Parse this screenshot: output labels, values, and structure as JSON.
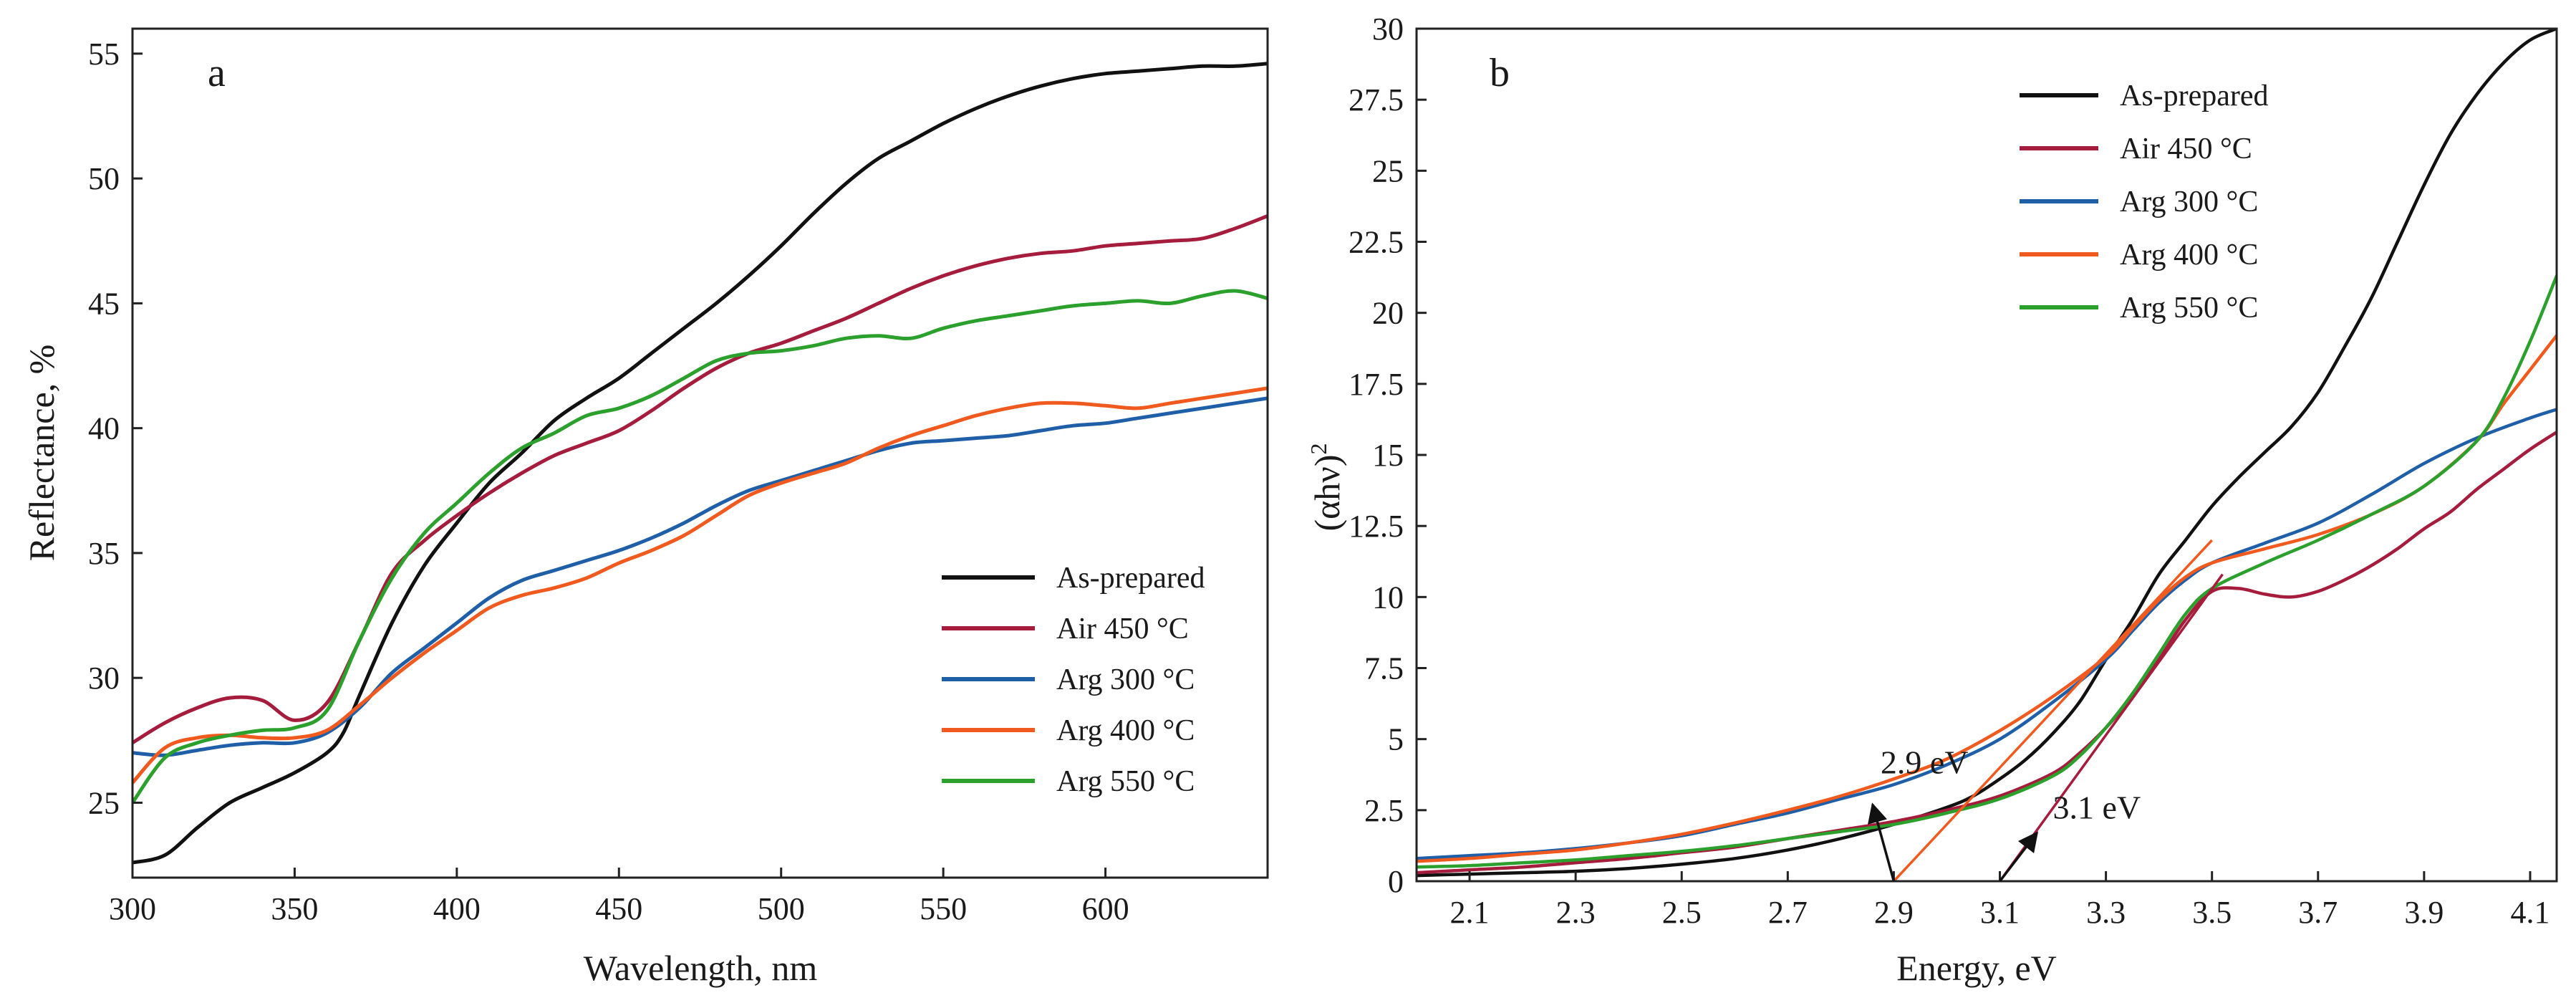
{
  "chart_data": [
    {
      "panel_label": "a",
      "type": "line",
      "title": "",
      "xlabel": "Wavelength, nm",
      "ylabel": "Reflectance, %",
      "xlim": [
        300,
        650
      ],
      "ylim": [
        22,
        56
      ],
      "x_ticks": [
        300,
        350,
        400,
        450,
        500,
        550,
        600
      ],
      "y_ticks": [
        25,
        30,
        35,
        40,
        45,
        50,
        55
      ],
      "grid": false,
      "legend_position": "bottom-right",
      "series": [
        {
          "name": "As-prepared",
          "color": "#111111",
          "x": [
            300,
            310,
            320,
            330,
            340,
            350,
            360,
            365,
            370,
            380,
            390,
            400,
            410,
            420,
            430,
            440,
            450,
            460,
            470,
            480,
            490,
            500,
            510,
            520,
            530,
            540,
            550,
            560,
            570,
            580,
            590,
            600,
            610,
            620,
            630,
            640,
            650
          ],
          "y": [
            22.6,
            22.9,
            24.0,
            25.0,
            25.6,
            26.2,
            27.0,
            27.8,
            29.3,
            32.2,
            34.5,
            36.2,
            37.8,
            39.0,
            40.3,
            41.2,
            42.0,
            43.0,
            44.0,
            45.0,
            46.1,
            47.3,
            48.6,
            49.8,
            50.8,
            51.5,
            52.2,
            52.8,
            53.3,
            53.7,
            54.0,
            54.2,
            54.3,
            54.4,
            54.5,
            54.5,
            54.6
          ]
        },
        {
          "name": "Air 450 °C",
          "color": "#a51c3c",
          "x": [
            300,
            310,
            320,
            330,
            340,
            350,
            360,
            370,
            380,
            390,
            400,
            410,
            420,
            430,
            440,
            450,
            460,
            470,
            480,
            490,
            500,
            510,
            520,
            530,
            540,
            550,
            560,
            570,
            580,
            590,
            600,
            610,
            620,
            630,
            640,
            650
          ],
          "y": [
            27.4,
            28.2,
            28.8,
            29.2,
            29.1,
            28.3,
            29.0,
            31.5,
            34.2,
            35.5,
            36.5,
            37.4,
            38.2,
            38.9,
            39.4,
            39.9,
            40.7,
            41.6,
            42.4,
            43.0,
            43.4,
            43.9,
            44.4,
            45.0,
            45.6,
            46.1,
            46.5,
            46.8,
            47.0,
            47.1,
            47.3,
            47.4,
            47.5,
            47.6,
            48.0,
            48.5
          ]
        },
        {
          "name": "Arg 300 °C",
          "color": "#1f5fa8",
          "x": [
            300,
            310,
            320,
            330,
            340,
            350,
            360,
            370,
            380,
            390,
            400,
            410,
            420,
            430,
            440,
            450,
            460,
            470,
            480,
            490,
            500,
            510,
            520,
            530,
            540,
            550,
            560,
            570,
            580,
            590,
            600,
            610,
            620,
            630,
            640,
            650
          ],
          "y": [
            27.0,
            26.9,
            27.1,
            27.3,
            27.4,
            27.4,
            27.8,
            28.8,
            30.2,
            31.2,
            32.2,
            33.2,
            33.9,
            34.3,
            34.7,
            35.1,
            35.6,
            36.2,
            36.9,
            37.5,
            37.9,
            38.3,
            38.7,
            39.1,
            39.4,
            39.5,
            39.6,
            39.7,
            39.9,
            40.1,
            40.2,
            40.4,
            40.6,
            40.8,
            41.0,
            41.2
          ]
        },
        {
          "name": "Arg 400 °C",
          "color": "#f05a1e",
          "x": [
            300,
            310,
            320,
            330,
            340,
            350,
            360,
            370,
            380,
            390,
            400,
            410,
            420,
            430,
            440,
            450,
            460,
            470,
            480,
            490,
            500,
            510,
            520,
            530,
            540,
            550,
            560,
            570,
            580,
            590,
            600,
            610,
            620,
            630,
            640,
            650
          ],
          "y": [
            25.8,
            27.2,
            27.6,
            27.7,
            27.6,
            27.6,
            27.9,
            28.9,
            30.0,
            31.0,
            31.9,
            32.8,
            33.3,
            33.6,
            34.0,
            34.6,
            35.1,
            35.7,
            36.5,
            37.3,
            37.8,
            38.2,
            38.6,
            39.2,
            39.7,
            40.1,
            40.5,
            40.8,
            41.0,
            41.0,
            40.9,
            40.8,
            41.0,
            41.2,
            41.4,
            41.6
          ]
        },
        {
          "name": "Arg 550 °C",
          "color": "#2ca02c",
          "x": [
            300,
            310,
            320,
            330,
            340,
            350,
            360,
            370,
            380,
            390,
            400,
            410,
            420,
            430,
            440,
            450,
            460,
            470,
            480,
            490,
            500,
            510,
            520,
            530,
            540,
            550,
            560,
            570,
            580,
            590,
            600,
            610,
            620,
            630,
            640,
            650
          ],
          "y": [
            25.0,
            26.8,
            27.4,
            27.7,
            27.9,
            28.0,
            28.7,
            31.5,
            34.0,
            35.8,
            37.0,
            38.2,
            39.2,
            39.8,
            40.5,
            40.8,
            41.3,
            42.0,
            42.7,
            43.0,
            43.1,
            43.3,
            43.6,
            43.7,
            43.6,
            44.0,
            44.3,
            44.5,
            44.7,
            44.9,
            45.0,
            45.1,
            45.0,
            45.3,
            45.5,
            45.2
          ]
        }
      ]
    },
    {
      "panel_label": "b",
      "type": "line",
      "title": "",
      "xlabel": "Energy, eV",
      "ylabel": "(αhν)²",
      "ylabel_base": "(αhν)",
      "ylabel_sup": "2",
      "xlim": [
        2.0,
        4.15
      ],
      "ylim": [
        0,
        30
      ],
      "x_ticks": [
        "2.1",
        "2.3",
        "2.5",
        "2.7",
        "2.9",
        "3.1",
        "3.3",
        "3.5",
        "3.7",
        "3.9",
        "4.1"
      ],
      "y_ticks": [
        "0",
        "2.5",
        "5",
        "7.5",
        "10",
        "12.5",
        "15",
        "17.5",
        "20",
        "22.5",
        "25",
        "27.5",
        "30"
      ],
      "grid": false,
      "legend_position": "top-left",
      "series": [
        {
          "name": "As-prepared",
          "color": "#111111",
          "x": [
            2.0,
            2.1,
            2.2,
            2.3,
            2.4,
            2.5,
            2.6,
            2.7,
            2.8,
            2.9,
            3.0,
            3.05,
            3.1,
            3.15,
            3.2,
            3.25,
            3.3,
            3.35,
            3.4,
            3.45,
            3.5,
            3.55,
            3.6,
            3.65,
            3.7,
            3.75,
            3.8,
            3.85,
            3.9,
            3.95,
            4.0,
            4.05,
            4.1,
            4.15
          ],
          "y": [
            0.2,
            0.25,
            0.3,
            0.35,
            0.45,
            0.6,
            0.8,
            1.1,
            1.5,
            2.0,
            2.6,
            3.0,
            3.6,
            4.3,
            5.2,
            6.3,
            7.8,
            9.2,
            10.8,
            12.0,
            13.2,
            14.2,
            15.1,
            16.0,
            17.2,
            18.8,
            20.5,
            22.5,
            24.5,
            26.3,
            27.7,
            28.8,
            29.6,
            30.0
          ]
        },
        {
          "name": "Air 450 °C",
          "color": "#a51c3c",
          "x": [
            2.0,
            2.1,
            2.2,
            2.3,
            2.4,
            2.5,
            2.6,
            2.7,
            2.8,
            2.9,
            3.0,
            3.1,
            3.2,
            3.25,
            3.3,
            3.35,
            3.4,
            3.45,
            3.5,
            3.55,
            3.6,
            3.65,
            3.7,
            3.75,
            3.8,
            3.85,
            3.9,
            3.95,
            4.0,
            4.05,
            4.1,
            4.15
          ],
          "y": [
            0.3,
            0.4,
            0.5,
            0.65,
            0.8,
            1.0,
            1.2,
            1.5,
            1.8,
            2.1,
            2.5,
            3.0,
            3.8,
            4.5,
            5.4,
            6.5,
            7.8,
            9.2,
            10.2,
            10.3,
            10.1,
            10.0,
            10.2,
            10.6,
            11.1,
            11.7,
            12.4,
            13.0,
            13.8,
            14.5,
            15.2,
            15.8
          ]
        },
        {
          "name": "Arg 300 °C",
          "color": "#1f5fa8",
          "x": [
            2.0,
            2.1,
            2.2,
            2.3,
            2.4,
            2.5,
            2.6,
            2.7,
            2.8,
            2.9,
            3.0,
            3.1,
            3.2,
            3.3,
            3.35,
            3.4,
            3.45,
            3.5,
            3.6,
            3.7,
            3.8,
            3.9,
            4.0,
            4.1,
            4.15
          ],
          "y": [
            0.8,
            0.9,
            1.0,
            1.15,
            1.35,
            1.6,
            2.0,
            2.4,
            2.9,
            3.4,
            4.1,
            5.0,
            6.3,
            7.8,
            8.8,
            9.8,
            10.6,
            11.2,
            11.9,
            12.6,
            13.6,
            14.7,
            15.6,
            16.3,
            16.6
          ]
        },
        {
          "name": "Arg 400 °C",
          "color": "#f05a1e",
          "x": [
            2.0,
            2.1,
            2.2,
            2.3,
            2.4,
            2.5,
            2.6,
            2.7,
            2.8,
            2.9,
            3.0,
            3.1,
            3.2,
            3.3,
            3.35,
            3.4,
            3.45,
            3.5,
            3.6,
            3.7,
            3.8,
            3.9,
            4.0,
            4.05,
            4.1,
            4.15
          ],
          "y": [
            0.7,
            0.8,
            0.95,
            1.1,
            1.35,
            1.65,
            2.05,
            2.5,
            3.0,
            3.6,
            4.3,
            5.3,
            6.5,
            7.9,
            8.9,
            9.9,
            10.7,
            11.2,
            11.7,
            12.2,
            12.9,
            13.9,
            15.5,
            16.8,
            18.0,
            19.2
          ]
        },
        {
          "name": "Arg 550 °C",
          "color": "#2ca02c",
          "x": [
            2.0,
            2.1,
            2.2,
            2.3,
            2.4,
            2.5,
            2.6,
            2.7,
            2.8,
            2.9,
            3.0,
            3.1,
            3.2,
            3.25,
            3.3,
            3.35,
            3.4,
            3.45,
            3.5,
            3.6,
            3.7,
            3.8,
            3.9,
            4.0,
            4.05,
            4.1,
            4.15
          ],
          "y": [
            0.5,
            0.55,
            0.65,
            0.75,
            0.9,
            1.05,
            1.25,
            1.5,
            1.75,
            2.0,
            2.4,
            2.9,
            3.7,
            4.4,
            5.4,
            6.6,
            8.0,
            9.4,
            10.3,
            11.2,
            12.0,
            12.9,
            13.9,
            15.5,
            17.0,
            19.0,
            21.3
          ]
        }
      ],
      "fit_lines": [
        {
          "color": "#f05a1e",
          "x1": 2.9,
          "y1": 0,
          "x2": 3.5,
          "y2": 12.0
        },
        {
          "color": "#a51c3c",
          "x1": 3.1,
          "y1": 0,
          "x2": 3.52,
          "y2": 10.8
        }
      ],
      "annotations": [
        {
          "text": "2.9 eV",
          "text_x": 2.875,
          "text_y": 3.8,
          "arrow": {
            "x1": 2.9,
            "y1": 0,
            "x2": 2.86,
            "y2": 2.7
          }
        },
        {
          "text": "3.1 eV",
          "text_x": 3.2,
          "text_y": 2.2,
          "arrow": {
            "x1": 3.1,
            "y1": 0,
            "x2": 3.17,
            "y2": 1.7
          }
        }
      ]
    }
  ]
}
